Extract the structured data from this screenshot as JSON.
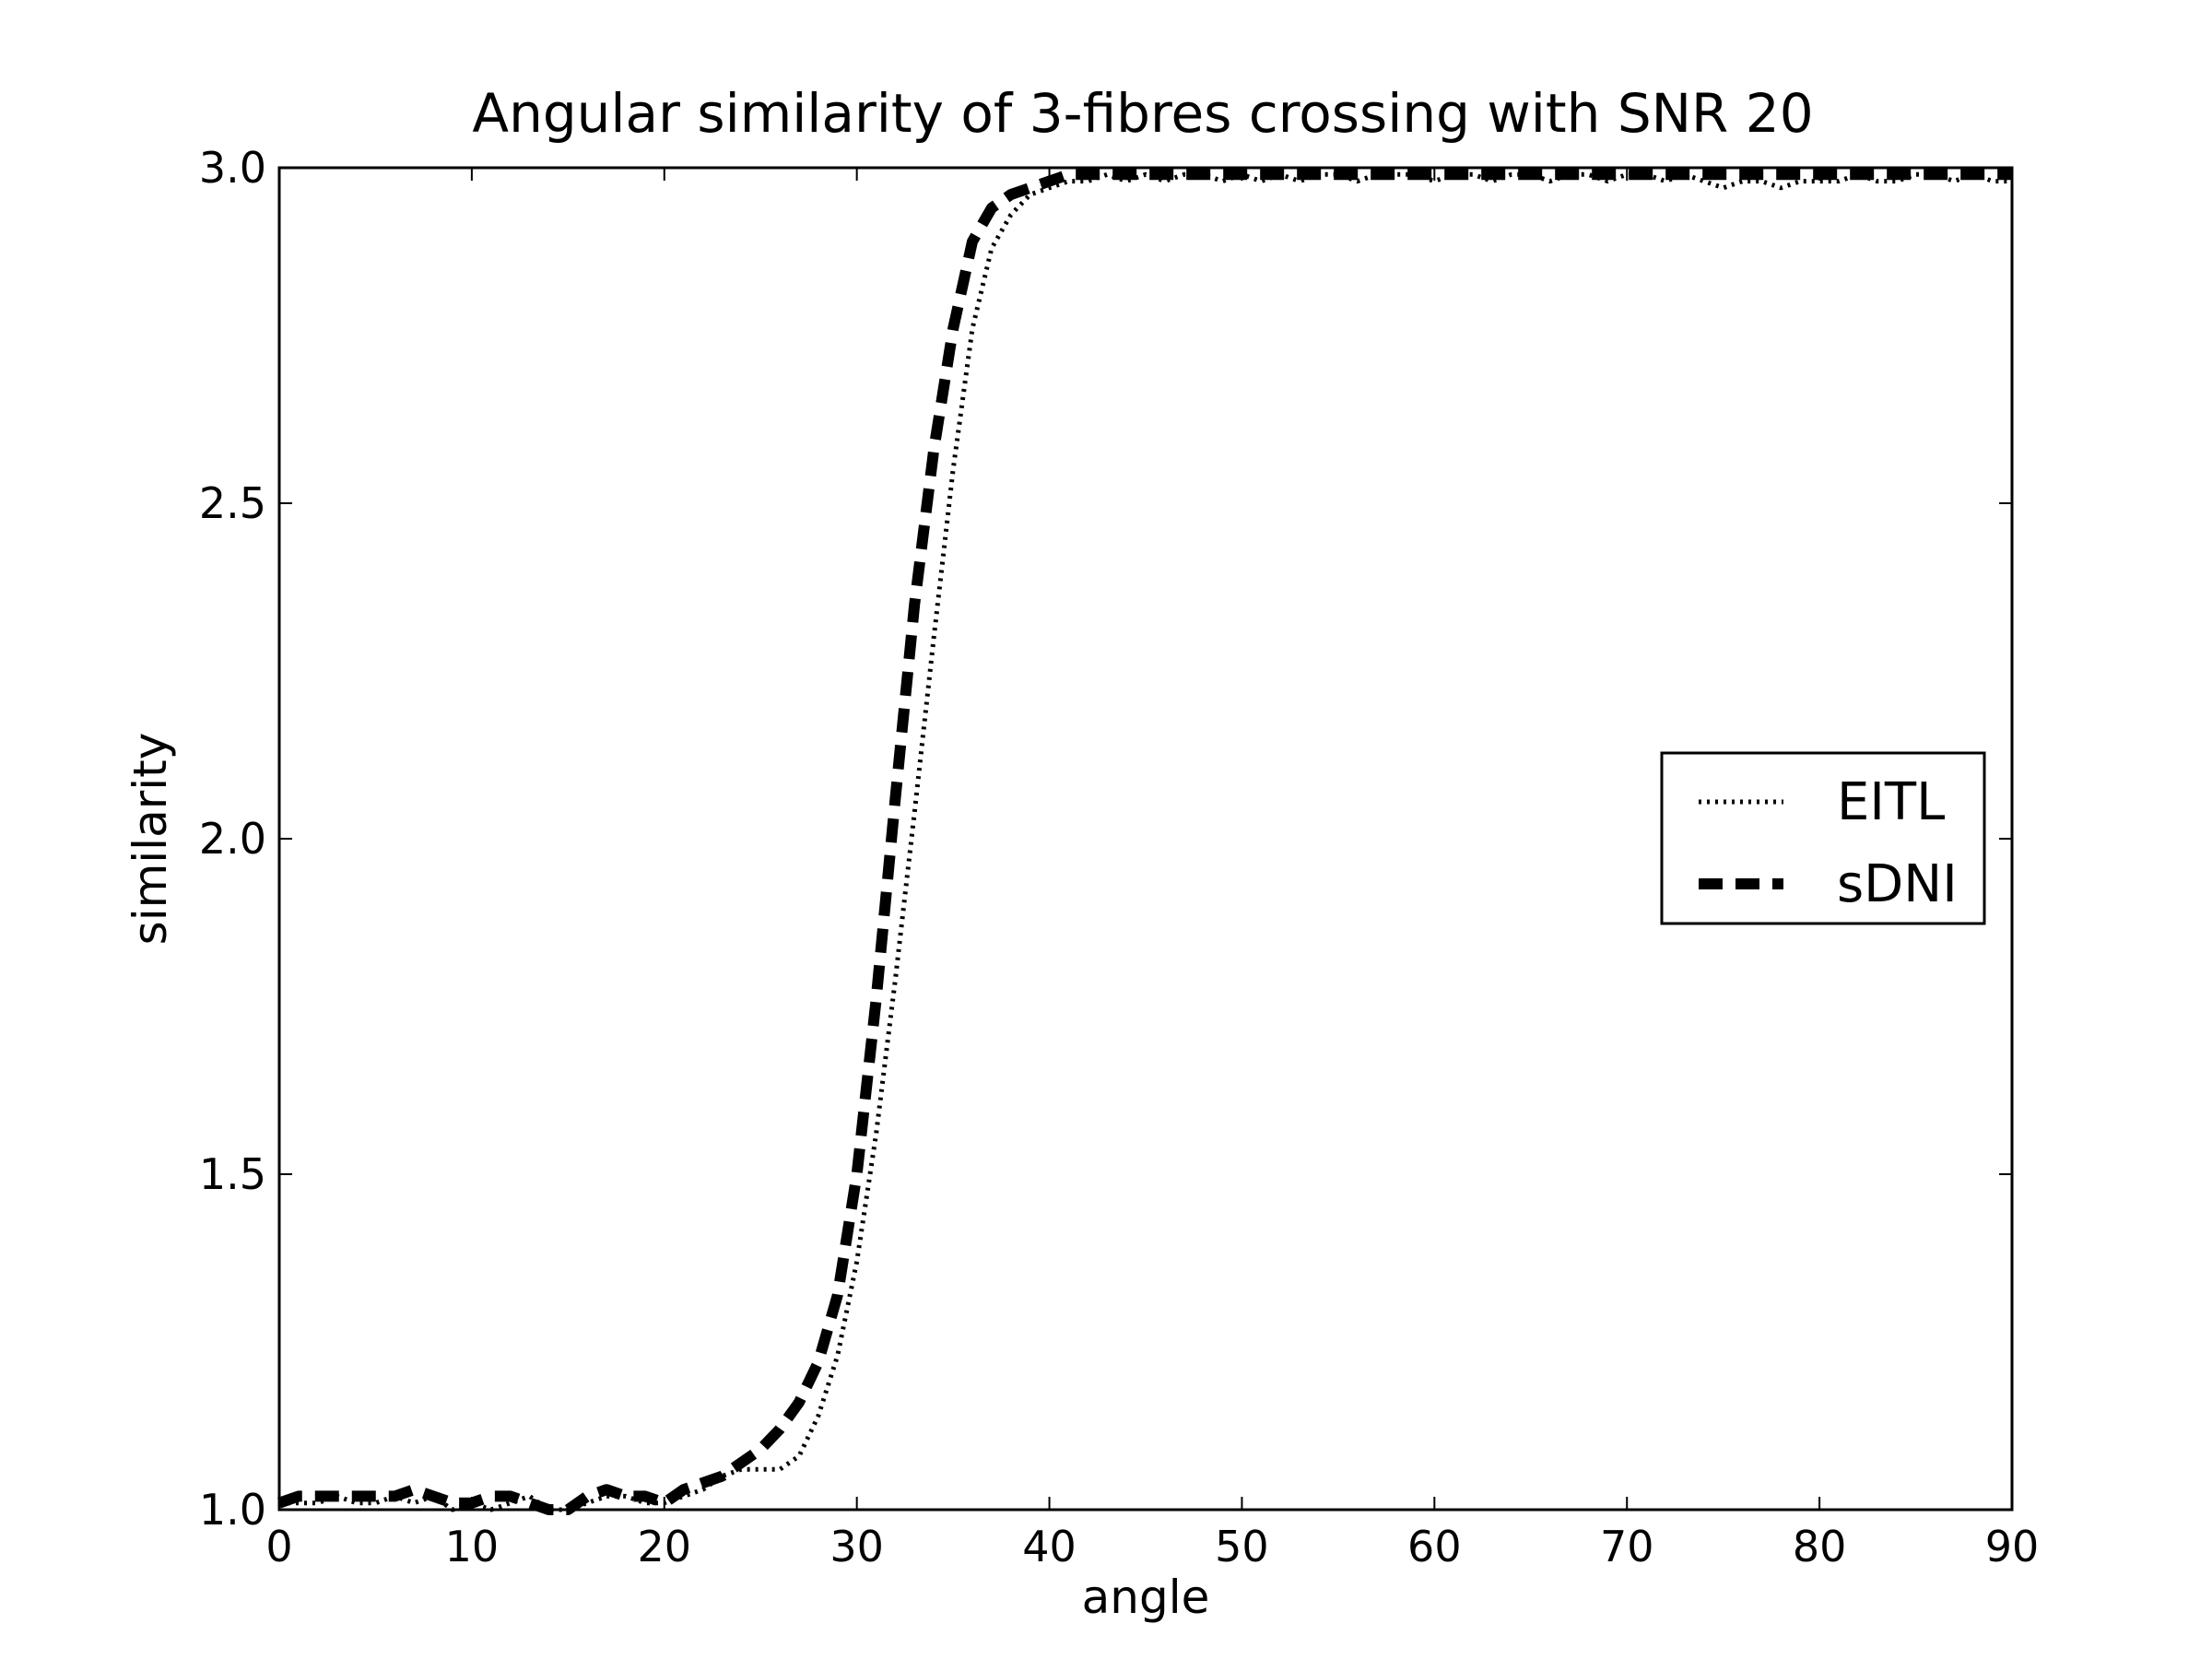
{
  "chart_data": {
    "type": "line",
    "title": "Angular similarity of 3-fibres crossing with SNR 20",
    "xlabel": "angle",
    "ylabel": "similarity",
    "xlim": [
      0,
      90
    ],
    "ylim": [
      1.0,
      3.0
    ],
    "xticks": [
      "0",
      "10",
      "20",
      "30",
      "40",
      "50",
      "60",
      "70",
      "80",
      "90"
    ],
    "yticks": [
      "1.0",
      "1.5",
      "2.0",
      "2.5",
      "3.0"
    ],
    "grid": false,
    "legend_position": "center-right",
    "series": [
      {
        "name": "EITL",
        "style": "dotted",
        "color": "#000000",
        "x": [
          0,
          1,
          2,
          3,
          4,
          5,
          6,
          7,
          8,
          9,
          10,
          11,
          12,
          13,
          14,
          15,
          16,
          17,
          18,
          19,
          20,
          21,
          22,
          23,
          24,
          25,
          26,
          27,
          28,
          29,
          30,
          31,
          32,
          33,
          34,
          35,
          36,
          37,
          38,
          39,
          40,
          41,
          42,
          43,
          44,
          45,
          46,
          47,
          48,
          49,
          50,
          51,
          52,
          53,
          54,
          55,
          56,
          57,
          58,
          59,
          60,
          61,
          62,
          63,
          64,
          65,
          66,
          67,
          68,
          69,
          70,
          71,
          72,
          73,
          74,
          75,
          76,
          77,
          78,
          79,
          80,
          81,
          82,
          83,
          84,
          85,
          86,
          87,
          88,
          89,
          90
        ],
        "y": [
          1.01,
          1.01,
          1.01,
          1.02,
          1.01,
          1.01,
          1.02,
          1.01,
          1.02,
          1.0,
          1.01,
          1.0,
          1.01,
          1.02,
          1.0,
          1.0,
          1.01,
          1.02,
          1.02,
          1.01,
          1.01,
          1.02,
          1.03,
          1.05,
          1.06,
          1.06,
          1.06,
          1.08,
          1.14,
          1.23,
          1.37,
          1.56,
          1.79,
          2.04,
          2.3,
          2.55,
          2.76,
          2.88,
          2.93,
          2.96,
          2.97,
          2.98,
          2.98,
          2.99,
          2.98,
          2.99,
          2.98,
          2.99,
          2.99,
          2.98,
          2.99,
          2.98,
          2.99,
          2.98,
          2.99,
          2.99,
          2.98,
          2.99,
          2.99,
          2.99,
          2.98,
          2.99,
          2.99,
          2.98,
          2.99,
          2.99,
          2.98,
          2.99,
          2.99,
          2.98,
          2.99,
          2.99,
          2.98,
          2.99,
          2.98,
          2.97,
          2.98,
          2.98,
          2.97,
          2.98,
          2.98,
          2.98,
          2.99,
          2.98,
          2.98,
          2.99,
          2.99,
          2.98,
          2.99,
          2.98,
          2.98
        ]
      },
      {
        "name": "sDNI",
        "style": "dashed",
        "color": "#000000",
        "x": [
          0,
          1,
          2,
          3,
          4,
          5,
          6,
          7,
          8,
          9,
          10,
          11,
          12,
          13,
          14,
          15,
          16,
          17,
          18,
          19,
          20,
          21,
          22,
          23,
          24,
          25,
          26,
          27,
          28,
          29,
          30,
          31,
          32,
          33,
          34,
          35,
          36,
          37,
          38,
          39,
          40,
          41,
          42,
          43,
          44,
          45,
          46,
          47,
          48,
          49,
          50,
          51,
          52,
          53,
          54,
          55,
          56,
          57,
          58,
          59,
          60,
          61,
          62,
          63,
          64,
          65,
          66,
          67,
          68,
          69,
          70,
          71,
          72,
          73,
          74,
          75,
          76,
          77,
          78,
          79,
          80,
          81,
          82,
          83,
          84,
          85,
          86,
          87,
          88,
          89,
          90
        ],
        "y": [
          1.01,
          1.02,
          1.02,
          1.02,
          1.02,
          1.02,
          1.02,
          1.03,
          1.02,
          1.01,
          1.01,
          1.02,
          1.02,
          1.01,
          1.0,
          1.0,
          1.02,
          1.03,
          1.02,
          1.02,
          1.01,
          1.03,
          1.04,
          1.05,
          1.07,
          1.09,
          1.12,
          1.16,
          1.22,
          1.32,
          1.5,
          1.76,
          2.06,
          2.35,
          2.58,
          2.76,
          2.89,
          2.94,
          2.96,
          2.97,
          2.98,
          2.99,
          2.99,
          2.99,
          2.99,
          2.99,
          2.99,
          2.99,
          2.99,
          2.99,
          2.99,
          2.99,
          2.99,
          2.99,
          2.99,
          2.99,
          2.99,
          2.99,
          2.99,
          2.99,
          2.99,
          2.99,
          2.99,
          2.99,
          2.99,
          2.99,
          2.99,
          2.99,
          2.99,
          2.99,
          2.99,
          2.99,
          2.99,
          2.99,
          2.99,
          2.99,
          2.99,
          2.99,
          2.99,
          2.99,
          2.99,
          2.99,
          2.99,
          2.99,
          2.99,
          2.99,
          2.99,
          2.99,
          2.99,
          2.99,
          2.99
        ]
      }
    ]
  }
}
